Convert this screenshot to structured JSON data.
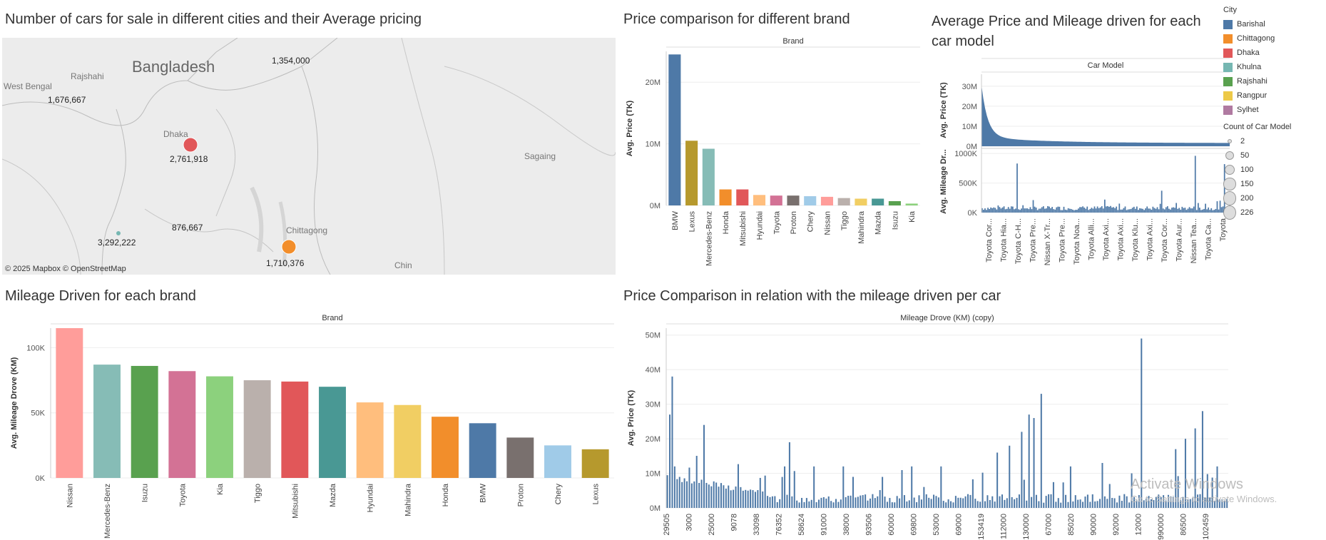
{
  "titles": {
    "map": "Number of cars for sale in different cities and their Average pricing",
    "brand_price": "Price comparison for different brand",
    "model": "Average Price and Mileage driven for each car model",
    "brand_mileage": "Mileage Driven for each brand",
    "mileage_price": "Price Comparison in relation with the mileage driven per car"
  },
  "map": {
    "attribution": "© 2025 Mapbox  © OpenStreetMap",
    "places": [
      "Bangladesh",
      "Rajshahi",
      "West Bengal",
      "Dhaka",
      "Chittagong",
      "Sagaing",
      "Chin"
    ],
    "value_labels": [
      "1,354,000",
      "1,676,667",
      "2,761,918",
      "876,667",
      "3,292,222",
      "1,710,376"
    ],
    "bubble_colors": {
      "dhaka": "#e15759",
      "chittagong": "#f28e2b",
      "rangpur": "#76b7b2"
    }
  },
  "legend": {
    "color_title": "City",
    "cities": [
      {
        "name": "Barishal",
        "color": "#4e79a7"
      },
      {
        "name": "Chittagong",
        "color": "#f28e2b"
      },
      {
        "name": "Dhaka",
        "color": "#e15759"
      },
      {
        "name": "Khulna",
        "color": "#76b7b2"
      },
      {
        "name": "Rajshahi",
        "color": "#59a14f"
      },
      {
        "name": "Rangpur",
        "color": "#edc948"
      },
      {
        "name": "Sylhet",
        "color": "#b07aa1"
      }
    ],
    "size_title": "Count of Car Model",
    "sizes": [
      2,
      50,
      100,
      150,
      200,
      226
    ]
  },
  "chart_data": [
    {
      "id": "brand_price",
      "type": "bar",
      "header": "Brand",
      "ylabel": "Avg. Price (TK)",
      "ylim": [
        0,
        25000000
      ],
      "yticks": [
        {
          "v": 0,
          "label": "0M"
        },
        {
          "v": 10000000,
          "label": "10M"
        },
        {
          "v": 20000000,
          "label": "20M"
        }
      ],
      "categories": [
        "BMW",
        "Lexus",
        "Mercedes-Benz",
        "Honda",
        "Mitsubishi",
        "Hyundai",
        "Toyota",
        "Proton",
        "Chery",
        "Nissan",
        "Tiggo",
        "Mahindra",
        "Mazda",
        "Isuzu",
        "Kia"
      ],
      "values": [
        24500000,
        10500000,
        9200000,
        2600000,
        2600000,
        1700000,
        1600000,
        1600000,
        1500000,
        1400000,
        1200000,
        1100000,
        1100000,
        700000,
        300000
      ],
      "colors": [
        "#4e79a7",
        "#b6992d",
        "#86bcb6",
        "#f28e2b",
        "#e15759",
        "#ffbe7d",
        "#d37295",
        "#79706e",
        "#a0cbe8",
        "#ff9d9a",
        "#bab0ac",
        "#f1ce63",
        "#499894",
        "#59a14f",
        "#8cd17d"
      ]
    },
    {
      "id": "brand_mileage",
      "type": "bar",
      "header": "Brand",
      "ylabel": "Avg. Mileage Drove (KM)",
      "ylim": [
        0,
        115000
      ],
      "yticks": [
        {
          "v": 0,
          "label": "0K"
        },
        {
          "v": 50000,
          "label": "50K"
        },
        {
          "v": 100000,
          "label": "100K"
        }
      ],
      "categories": [
        "Nissan",
        "Mercedes-Benz",
        "Isuzu",
        "Toyota",
        "Kia",
        "Tiggo",
        "Mitsubishi",
        "Mazda",
        "Hyundai",
        "Mahindra",
        "Honda",
        "BMW",
        "Proton",
        "Chery",
        "Lexus"
      ],
      "values": [
        115000,
        87000,
        86000,
        82000,
        78000,
        75000,
        74000,
        70000,
        58000,
        56000,
        47000,
        42000,
        31000,
        25000,
        22000
      ],
      "colors": [
        "#ff9d9a",
        "#86bcb6",
        "#59a14f",
        "#d37295",
        "#8cd17d",
        "#bab0ac",
        "#e15759",
        "#499894",
        "#ffbe7d",
        "#f1ce63",
        "#f28e2b",
        "#4e79a7",
        "#79706e",
        "#a0cbe8",
        "#b6992d"
      ]
    },
    {
      "id": "model_price",
      "type": "bar",
      "header": "Car Model",
      "ylabel": "Avg. Price (TK)",
      "ylim": [
        0,
        36000000
      ],
      "yticks": [
        {
          "v": 0,
          "label": "0M"
        },
        {
          "v": 10000000,
          "label": "10M"
        },
        {
          "v": 20000000,
          "label": "20M"
        },
        {
          "v": 30000000,
          "label": "30M"
        }
      ],
      "color": "#4e79a7"
    },
    {
      "id": "model_mileage",
      "type": "bar",
      "ylabel": "Avg. Mileage Dr...",
      "ylim": [
        0,
        1050000
      ],
      "yticks": [
        {
          "v": 0,
          "label": "0K"
        },
        {
          "v": 500000,
          "label": "500K"
        },
        {
          "v": 1000000,
          "label": "1000K"
        }
      ],
      "categories": [
        "Toyota Cor...",
        "Toyota Hia...",
        "Toyota C-H...",
        "Toyota Pre...",
        "Nissan X-Tr...",
        "Toyota Pre...",
        "Toyota Noa...",
        "Toyota Alli...",
        "Toyota Axi...",
        "Toyota Axi...",
        "Toyota Klu...",
        "Toyota Axi...",
        "Toyota Cor...",
        "Toyota Aur...",
        "Nissan Tea...",
        "Toyota Ca...",
        "Toyota"
      ],
      "color": "#4e79a7"
    },
    {
      "id": "mileage_price",
      "type": "bar",
      "header": "Mileage Drove (KM) (copy)",
      "ylabel": "Avg. Price (TK)",
      "ylim": [
        0,
        52000000
      ],
      "yticks": [
        {
          "v": 0,
          "label": "0M"
        },
        {
          "v": 10000000,
          "label": "10M"
        },
        {
          "v": 20000000,
          "label": "20M"
        },
        {
          "v": 30000000,
          "label": "30M"
        },
        {
          "v": 40000000,
          "label": "40M"
        },
        {
          "v": 50000000,
          "label": "50M"
        }
      ],
      "categories": [
        "29505",
        "3000",
        "25000",
        "9078",
        "33098",
        "76352",
        "58624",
        "91000",
        "38000",
        "93506",
        "60000",
        "69800",
        "53000",
        "69000",
        "153419",
        "112000",
        "130000",
        "67000",
        "85020",
        "90000",
        "92000",
        "12000",
        "990000",
        "86500",
        "102459"
      ],
      "color": "#4e79a7"
    }
  ],
  "watermark": {
    "line1": "Activate Windows",
    "line2": "Go to Settings to activate Windows."
  }
}
